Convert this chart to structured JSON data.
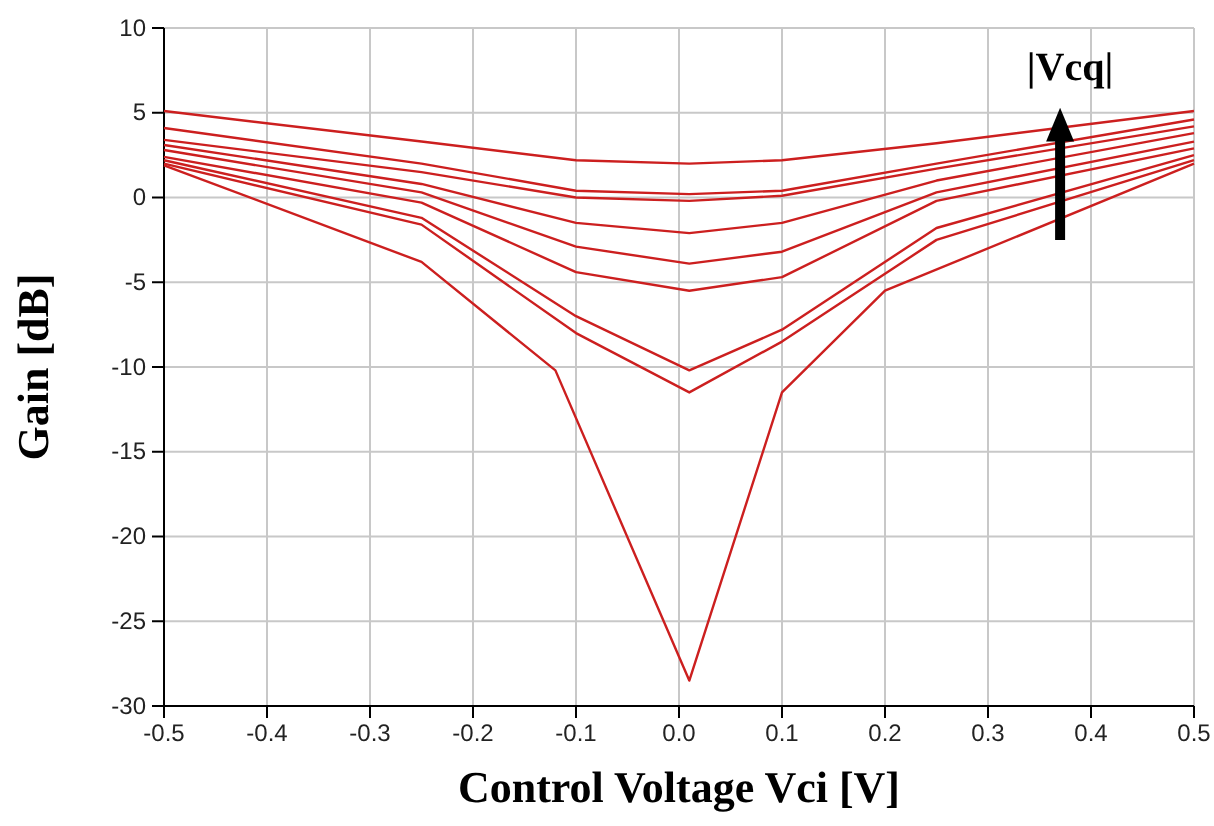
{
  "chart_data": {
    "type": "line",
    "xlabel": "Control Voltage Vci [V]",
    "ylabel": "Gain [dB]",
    "xlim": [
      -0.5,
      0.5
    ],
    "xticks": [
      -0.5,
      -0.4,
      -0.3,
      -0.2,
      -0.1,
      {
        "value": 0,
        "label": "0.0"
      },
      0.1,
      0.2,
      0.3,
      0.4,
      0.5
    ],
    "ylim": [
      -30,
      10
    ],
    "yticks": [
      -30,
      -25,
      -20,
      -15,
      -10,
      -5,
      0,
      5,
      10
    ],
    "grid": true,
    "marker": "none",
    "line_style": "solid",
    "annotations": [
      "|Vcq|"
    ],
    "series": [
      {
        "color": "#cc1f1f",
        "x": [
          -0.5,
          -0.25,
          -0.1,
          0.01,
          0.1,
          0.25,
          0.5
        ],
        "values": [
          5.1,
          3.3,
          2.2,
          2.0,
          2.2,
          3.2,
          5.1
        ]
      },
      {
        "color": "#cc1f1f",
        "x": [
          -0.5,
          -0.25,
          -0.1,
          0.01,
          0.1,
          0.25,
          0.5
        ],
        "values": [
          4.1,
          2.0,
          0.4,
          0.2,
          0.4,
          2.0,
          4.6
        ]
      },
      {
        "color": "#cc1f1f",
        "x": [
          -0.5,
          -0.25,
          -0.1,
          0.01,
          0.1,
          0.25,
          0.5
        ],
        "values": [
          3.4,
          1.5,
          0.0,
          -0.2,
          0.1,
          1.7,
          4.2
        ]
      },
      {
        "color": "#cc1f1f",
        "x": [
          -0.5,
          -0.25,
          -0.1,
          0.01,
          0.1,
          0.25,
          0.5
        ],
        "values": [
          3.1,
          0.8,
          -1.5,
          -2.1,
          -1.5,
          1.0,
          3.8
        ]
      },
      {
        "color": "#cc1f1f",
        "x": [
          -0.5,
          -0.25,
          -0.1,
          0.01,
          0.1,
          0.25,
          0.5
        ],
        "values": [
          2.8,
          0.3,
          -2.9,
          -3.9,
          -3.2,
          0.3,
          3.3
        ]
      },
      {
        "color": "#cc1f1f",
        "x": [
          -0.5,
          -0.25,
          -0.1,
          0.01,
          0.1,
          0.25,
          0.5
        ],
        "values": [
          2.4,
          -0.3,
          -4.4,
          -5.5,
          -4.7,
          -0.2,
          2.9
        ]
      },
      {
        "color": "#cc1f1f",
        "x": [
          -0.5,
          -0.25,
          -0.1,
          0.01,
          0.1,
          0.25,
          0.5
        ],
        "values": [
          2.2,
          -1.2,
          -7.0,
          -10.2,
          -7.8,
          -1.8,
          2.5
        ]
      },
      {
        "color": "#cc1f1f",
        "x": [
          -0.5,
          -0.25,
          -0.1,
          0.01,
          0.1,
          0.25,
          0.5
        ],
        "values": [
          2.0,
          -1.6,
          -8.0,
          -11.5,
          -8.5,
          -2.5,
          2.2
        ]
      },
      {
        "color": "#cc1f1f",
        "x": [
          -0.5,
          -0.25,
          -0.12,
          0.01,
          0.1,
          0.2,
          0.5
        ],
        "values": [
          1.9,
          -3.8,
          -10.2,
          -28.5,
          -11.5,
          -5.5,
          2.0
        ]
      }
    ]
  }
}
